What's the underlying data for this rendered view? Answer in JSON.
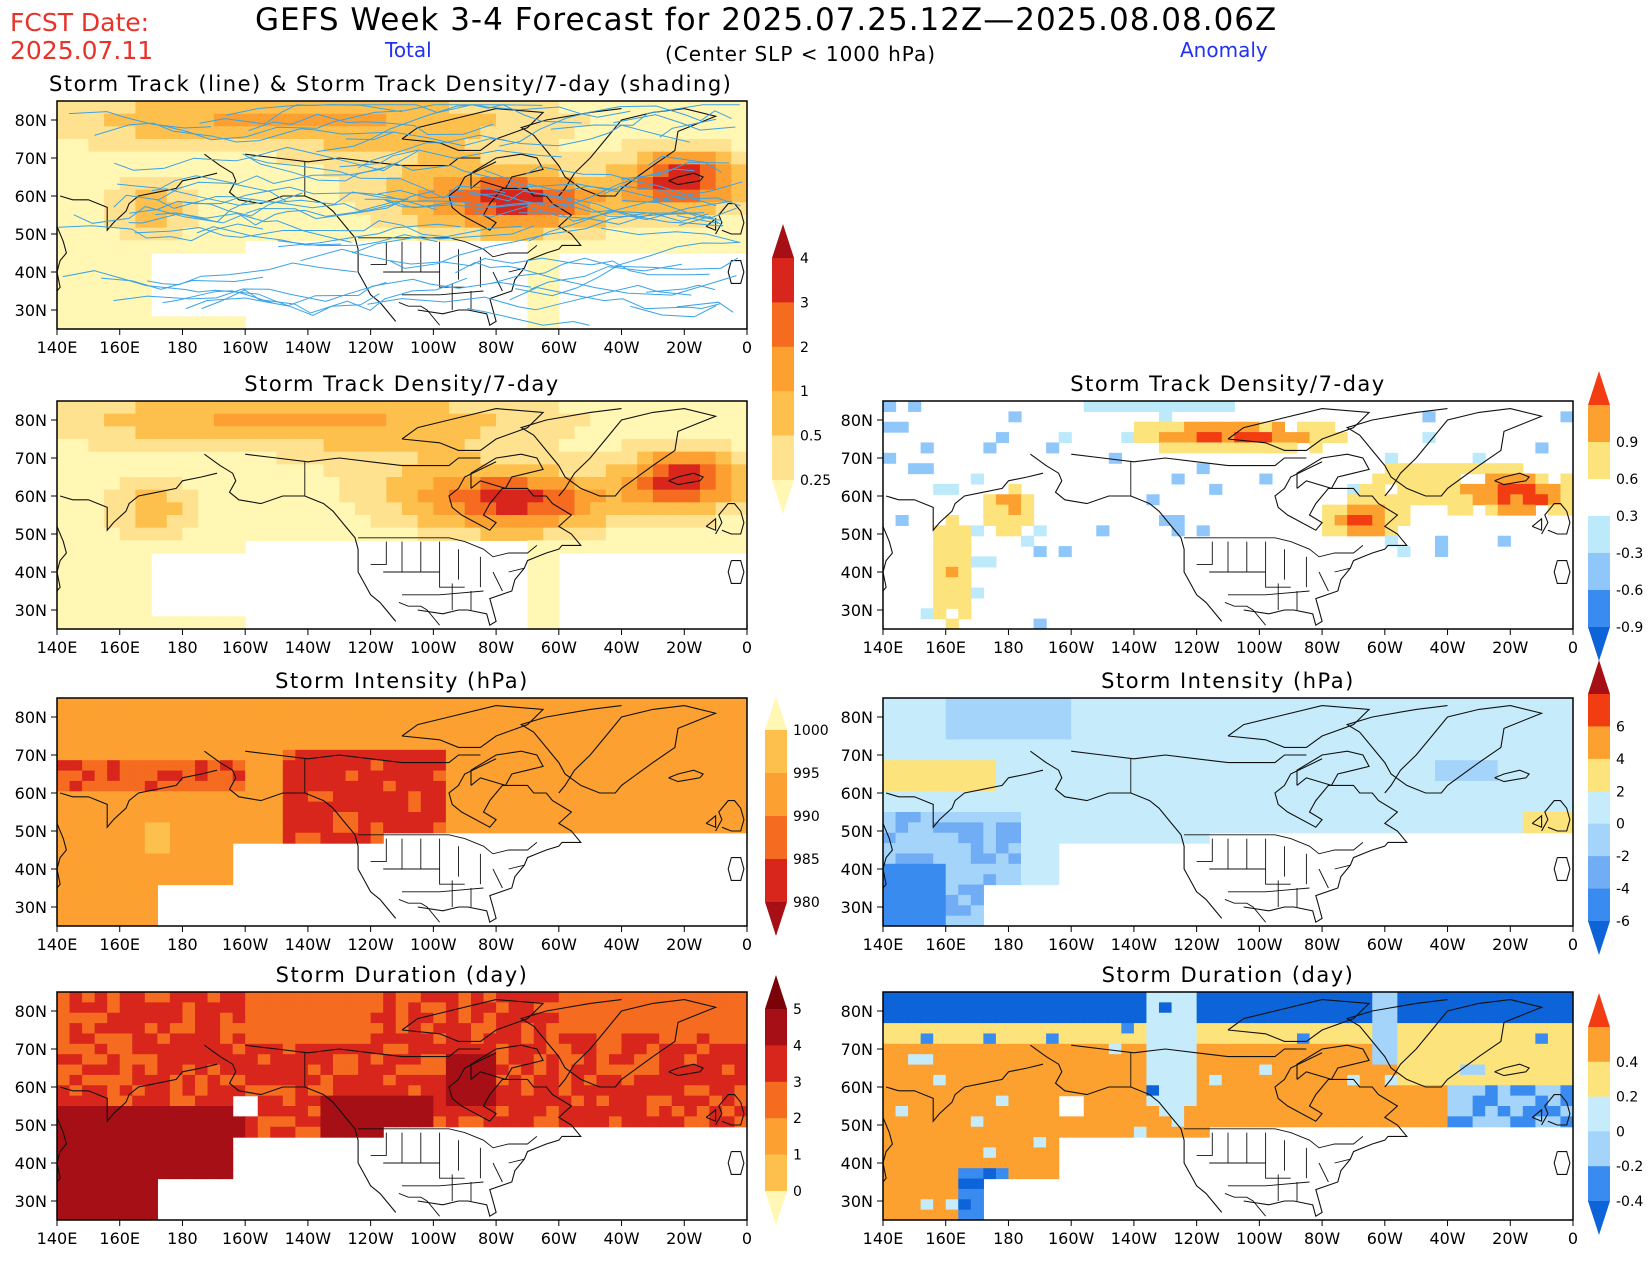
{
  "header": {
    "fcst_label": "FCST Date:",
    "fcst_date": "2025.07.11",
    "title": "GEFS Week 3-4 Forecast for 2025.07.25.12Z—2025.08.08.06Z",
    "total_label": "Total",
    "anomaly_label": "Anomaly",
    "subtitle": "(Center SLP < 1000 hPa)"
  },
  "axes": {
    "lon_labels": [
      "140E",
      "160E",
      "180",
      "160W",
      "140W",
      "120W",
      "100W",
      "80W",
      "60W",
      "40W",
      "20W",
      "0"
    ],
    "lat_labels": [
      "80N",
      "70N",
      "60N",
      "50N",
      "40N",
      "30N"
    ]
  },
  "panels": [
    {
      "id": "track-total",
      "title": "Storm Track (line) & Storm Track Density/7-day (shading)",
      "scale": "total_density",
      "tracks": true,
      "pattern": "density"
    },
    {
      "id": "density-total",
      "title": "Storm Track Density/7-day",
      "scale": "total_density",
      "pattern": "density"
    },
    {
      "id": "density-anom",
      "title": "Storm Track Density/7-day",
      "scale": "anom_density",
      "pattern": "density_anom"
    },
    {
      "id": "intensity-total",
      "title": "Storm Intensity (hPa)",
      "scale": "total_intensity",
      "pattern": "intensity"
    },
    {
      "id": "intensity-anom",
      "title": "Storm Intensity (hPa)",
      "scale": "anom_intensity",
      "pattern": "intensity_anom"
    },
    {
      "id": "duration-total",
      "title": "Storm Duration (day)",
      "scale": "total_duration",
      "pattern": "duration"
    },
    {
      "id": "duration-anom",
      "title": "Storm Duration (day)",
      "scale": "anom_duration",
      "pattern": "duration_anom"
    }
  ],
  "colorbars": [
    {
      "id": "total_density",
      "labels": [
        "0.25",
        "0.5",
        "1",
        "2",
        "3",
        "4"
      ],
      "colors": [
        "#fff7b3",
        "#ffe290",
        "#fec04d",
        "#fca131",
        "#f56b20",
        "#d9261c",
        "#a50f15"
      ]
    },
    {
      "id": "anom_density",
      "labels": [
        "-0.9",
        "-0.6",
        "-0.3",
        "0.3",
        "0.6",
        "0.9"
      ],
      "colors": [
        "#0d63d8",
        "#3a8bf0",
        "#8fc7fb",
        "#bdeafb",
        "#ffffff",
        "#fde37b",
        "#fca130",
        "#f23c12"
      ]
    },
    {
      "id": "total_intensity",
      "labels": [
        "980",
        "985",
        "990",
        "995",
        "1000"
      ],
      "colors": [
        "#a50f15",
        "#d9261c",
        "#f56b20",
        "#fca131",
        "#fec04d",
        "#fff7b3"
      ]
    },
    {
      "id": "anom_intensity",
      "labels": [
        "-6",
        "-4",
        "-2",
        "0",
        "2",
        "4",
        "6"
      ],
      "colors": [
        "#0d63d8",
        "#3a8bf0",
        "#71adf5",
        "#a5d4fb",
        "#c6ecfb",
        "#fde37b",
        "#fca130",
        "#f23c12",
        "#a50f15"
      ]
    },
    {
      "id": "total_duration",
      "labels": [
        "0",
        "1",
        "2",
        "3",
        "4",
        "5"
      ],
      "colors": [
        "#fff7b3",
        "#fec04d",
        "#fca131",
        "#f56b20",
        "#d9261c",
        "#a50f15",
        "#7a0309"
      ]
    },
    {
      "id": "anom_duration",
      "labels": [
        "-0.4",
        "-0.2",
        "0",
        "0.2",
        "0.4"
      ],
      "colors": [
        "#0d63d8",
        "#3a8bf0",
        "#a5d4fb",
        "#c6ecfb",
        "#fde37b",
        "#fca130",
        "#f23c12"
      ]
    }
  ],
  "colors": {
    "track_line": "#3aa3e6",
    "coast": "#111111",
    "title_red": "#e8322a",
    "label_blue": "#2233ee"
  }
}
